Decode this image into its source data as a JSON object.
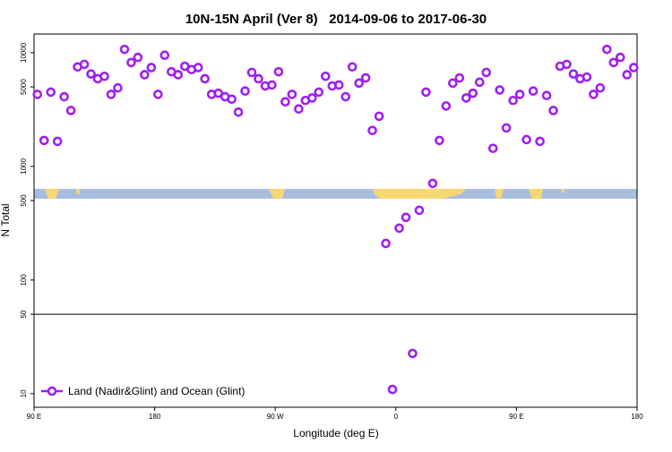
{
  "chart_data": {
    "type": "scatter",
    "title": "10N-15N April (Ver 8)   2014-09-06 to 2017-06-30",
    "x_label": "Longitude (deg E)",
    "y_label": "N Total",
    "log_y": true,
    "legend_position": "bottom-left",
    "reference_line": 50,
    "xlim": [
      90,
      540
    ],
    "xticks": [
      {
        "value": 90,
        "label": "90 E"
      },
      180,
      {
        "value": 270,
        "label": "90 W"
      },
      {
        "value": 360,
        "label": "0"
      },
      {
        "value": 450,
        "label": "90 E"
      },
      {
        "value": 540,
        "label": "180"
      }
    ],
    "ylim": [
      7.6,
      14600
    ],
    "yticks": [
      10,
      50,
      100,
      500,
      1000,
      5000,
      10000
    ],
    "series": [
      {
        "name": "Land (Nadir&Glint) and Ocean (Glint)",
        "color": "#a020f0",
        "x": [
          92.5,
          97.5,
          102.5,
          107.5,
          112.5,
          117.5,
          122.5,
          127.5,
          132.5,
          137.5,
          142.5,
          147.5,
          152.5,
          157.5,
          162.5,
          167.5,
          172.5,
          177.5,
          182.5,
          187.5,
          192.5,
          197.5,
          202.5,
          207.5,
          212.5,
          217.5,
          222.5,
          227.5,
          232.5,
          237.5,
          242.5,
          247.5,
          252.5,
          257.5,
          262.5,
          267.5,
          272.5,
          277.5,
          282.5,
          287.5,
          292.5,
          297.5,
          302.5,
          307.5,
          312.5,
          317.5,
          322.5,
          327.5,
          332.5,
          337.5,
          342.5,
          347.5,
          352.5,
          357.5,
          362.5,
          367.5,
          372.5,
          377.5,
          382.5,
          387.5,
          392.5,
          397.5,
          402.5,
          407.5,
          412.5,
          417.5,
          422.5,
          427.5,
          432.5,
          437.5,
          442.5,
          447.5,
          452.5,
          457.5,
          462.5,
          467.5,
          472.5,
          477.5,
          482.5,
          487.5,
          492.5,
          497.5,
          502.5,
          507.5,
          512.5,
          517.5,
          522.5,
          527.5,
          532.5,
          537.5
        ],
        "values": [
          4300,
          1690,
          4500,
          1660,
          4100,
          3100,
          7500,
          7900,
          6500,
          5900,
          6200,
          4300,
          4900,
          10700,
          8200,
          9100,
          6400,
          7400,
          4300,
          9500,
          6800,
          6400,
          7600,
          7100,
          7400,
          5900,
          4300,
          4400,
          4100,
          3900,
          3000,
          4600,
          6700,
          5900,
          5100,
          5200,
          6800,
          3700,
          4300,
          3200,
          3800,
          4000,
          4500,
          6200,
          5100,
          5200,
          4100,
          7500,
          5400,
          6000,
          2070,
          2760,
          210,
          10.9,
          286,
          356,
          22.6,
          411,
          4500,
          708,
          1690,
          3400,
          5400,
          6000,
          4000,
          4400,
          5500,
          6700,
          1440,
          4700,
          2180,
          3800,
          4300,
          1720,
          4600,
          1660,
          4200,
          3100,
          7600,
          7900,
          6500,
          5900,
          6100,
          4300,
          4900,
          10700,
          8200,
          9100,
          6400,
          7400
        ]
      }
    ]
  }
}
